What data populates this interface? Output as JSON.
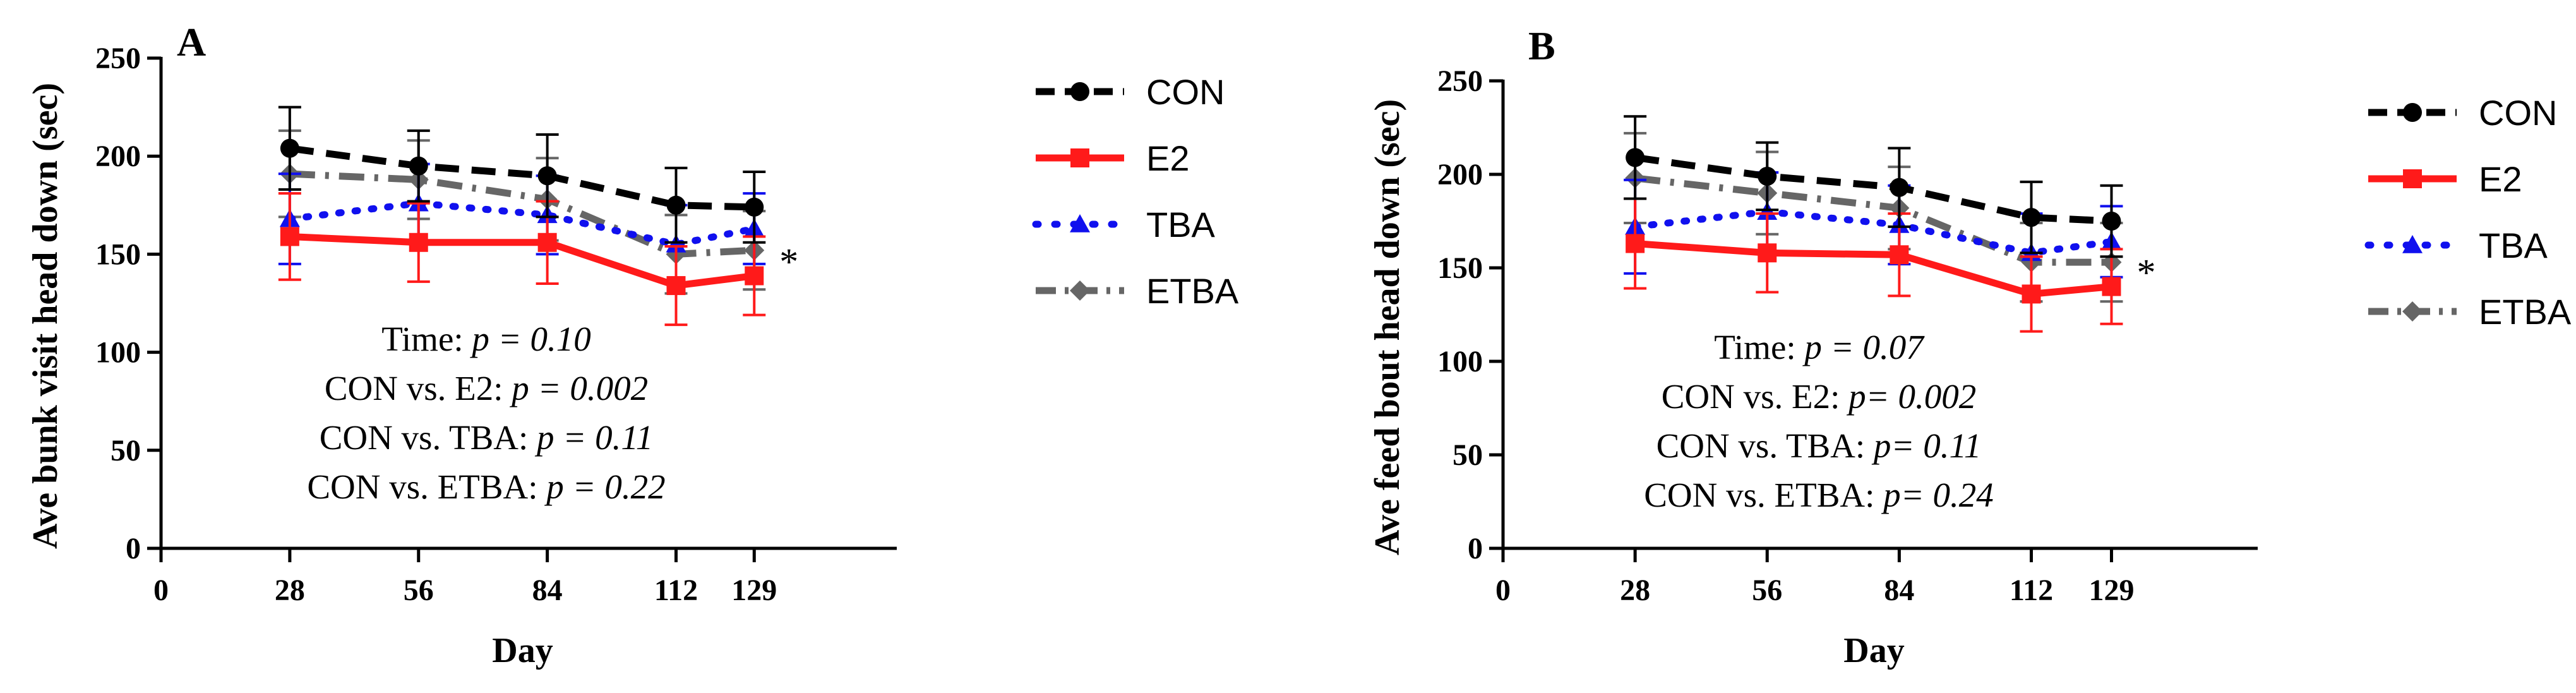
{
  "colors": {
    "CON": "#000000",
    "E2": "#ff1a1a",
    "TBA": "#1010ee",
    "ETBA": "#666666"
  },
  "chart_data": [
    {
      "type": "line",
      "panel_label": "A",
      "title": "",
      "xlabel": "Day",
      "ylabel": "Ave bunk visit head down (sec)",
      "x_ticks": [
        "0",
        "28",
        "56",
        "84",
        "112",
        "129"
      ],
      "y_ticks": [
        "0",
        "50",
        "100",
        "150",
        "200",
        "250"
      ],
      "xlim": [
        0,
        160
      ],
      "ylim": [
        0,
        250
      ],
      "x": [
        28,
        56,
        84,
        112,
        129
      ],
      "series": [
        {
          "name": "CON",
          "values": [
            204,
            195,
            190,
            175,
            174
          ],
          "errors": [
            21,
            18,
            21,
            19,
            18
          ]
        },
        {
          "name": "E2",
          "values": [
            159,
            156,
            156,
            134,
            139
          ],
          "errors": [
            22,
            20,
            21,
            20,
            20
          ]
        },
        {
          "name": "TBA",
          "values": [
            168,
            176,
            170,
            155,
            163
          ],
          "errors": [
            23,
            20,
            20,
            20,
            18
          ]
        },
        {
          "name": "ETBA",
          "values": [
            191,
            188,
            178,
            150,
            152
          ],
          "errors": [
            22,
            20,
            21,
            20,
            20
          ]
        }
      ],
      "annotation": "*",
      "stats": [
        {
          "label": "Time: ",
          "p": "p = 0.10"
        },
        {
          "label": "CON vs.  E2: ",
          "p": "p = 0.002"
        },
        {
          "label": "CON vs. TBA: ",
          "p": "p = 0.11"
        },
        {
          "label": "CON vs. ETBA: ",
          "p": "p = 0.22"
        }
      ],
      "legend": [
        "CON",
        "E2",
        "TBA",
        "ETBA"
      ],
      "legend_position": "right",
      "grid": false
    },
    {
      "type": "line",
      "panel_label": "B",
      "title": "",
      "xlabel": "Day",
      "ylabel": "Ave feed bout head down (sec)",
      "x_ticks": [
        "0",
        "28",
        "56",
        "84",
        "112",
        "129"
      ],
      "y_ticks": [
        "0",
        "50",
        "100",
        "150",
        "200",
        "250"
      ],
      "xlim": [
        0,
        160
      ],
      "ylim": [
        0,
        250
      ],
      "x": [
        28,
        56,
        84,
        112,
        129
      ],
      "series": [
        {
          "name": "CON",
          "values": [
            209,
            199,
            193,
            177,
            175
          ],
          "errors": [
            22,
            18,
            21,
            19,
            19
          ]
        },
        {
          "name": "E2",
          "values": [
            163,
            158,
            157,
            136,
            140
          ],
          "errors": [
            24,
            21,
            22,
            20,
            20
          ]
        },
        {
          "name": "TBA",
          "values": [
            172,
            180,
            173,
            158,
            164
          ],
          "errors": [
            25,
            21,
            21,
            21,
            19
          ]
        },
        {
          "name": "ETBA",
          "values": [
            198,
            190,
            182,
            153,
            153
          ],
          "errors": [
            24,
            22,
            22,
            21,
            21
          ]
        }
      ],
      "annotation": "*",
      "stats": [
        {
          "label": "Time: ",
          "p": "p = 0.07"
        },
        {
          "label": "CON vs.  E2: ",
          "p": "p= 0.002"
        },
        {
          "label": "CON vs. TBA: ",
          "p": "p= 0.11"
        },
        {
          "label": "CON vs. ETBA: ",
          "p": "p= 0.24"
        }
      ],
      "legend": [
        "CON",
        "E2",
        "TBA",
        "ETBA"
      ],
      "legend_position": "right",
      "grid": false
    }
  ]
}
